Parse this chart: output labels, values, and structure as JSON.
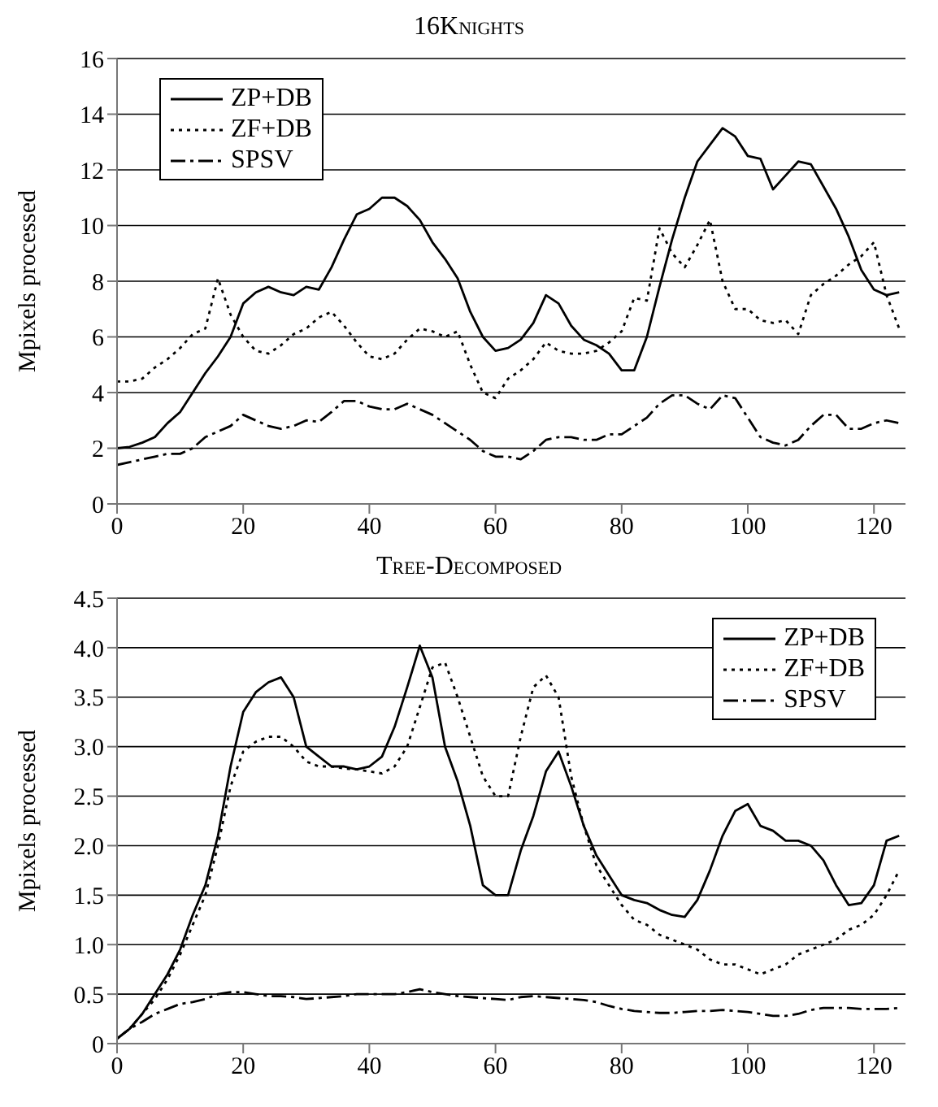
{
  "chart_data": [
    {
      "type": "line",
      "title": "16Knights",
      "ylabel": "Mpixels processed",
      "x": [
        0,
        2,
        4,
        6,
        8,
        10,
        12,
        14,
        16,
        18,
        20,
        22,
        24,
        26,
        28,
        30,
        32,
        34,
        36,
        38,
        40,
        42,
        44,
        46,
        48,
        50,
        52,
        54,
        56,
        58,
        60,
        62,
        64,
        66,
        68,
        70,
        72,
        74,
        76,
        78,
        80,
        82,
        84,
        86,
        88,
        90,
        92,
        94,
        96,
        98,
        100,
        102,
        104,
        106,
        108,
        110,
        112,
        114,
        116,
        118,
        120,
        122,
        124
      ],
      "xlim": [
        0,
        125
      ],
      "xticks": [
        0,
        20,
        40,
        60,
        80,
        100,
        120
      ],
      "ylim": [
        0,
        16
      ],
      "yticks": [
        0,
        2,
        4,
        6,
        8,
        10,
        12,
        14,
        16
      ],
      "grid": "y",
      "legend": "top left",
      "series": [
        {
          "name": "ZP+DB",
          "color": "#000000",
          "line_style": "solid",
          "values": [
            2.0,
            2.05,
            2.2,
            2.4,
            2.9,
            3.3,
            4.0,
            4.7,
            5.3,
            6.0,
            7.2,
            7.6,
            7.8,
            7.6,
            7.5,
            7.8,
            7.7,
            8.5,
            9.5,
            10.4,
            10.6,
            11.0,
            11.0,
            10.7,
            10.2,
            9.4,
            8.8,
            8.1,
            6.9,
            6.0,
            5.5,
            5.6,
            5.9,
            6.5,
            7.5,
            7.2,
            6.4,
            5.9,
            5.7,
            5.4,
            4.8,
            4.8,
            6.0,
            7.8,
            9.5,
            11.0,
            12.3,
            12.9,
            13.5,
            13.2,
            12.5,
            12.4,
            11.3,
            11.8,
            12.3,
            12.2,
            11.4,
            10.6,
            9.6,
            8.4,
            7.7,
            7.5,
            7.6
          ]
        },
        {
          "name": "ZF+DB",
          "color": "#000000",
          "line_style": "dotted",
          "values": [
            4.4,
            4.4,
            4.5,
            4.9,
            5.2,
            5.6,
            6.1,
            6.3,
            8.1,
            6.8,
            6.0,
            5.5,
            5.4,
            5.7,
            6.1,
            6.3,
            6.7,
            6.9,
            6.4,
            5.8,
            5.3,
            5.2,
            5.4,
            5.9,
            6.3,
            6.2,
            6.0,
            6.2,
            5.0,
            4.0,
            3.8,
            4.5,
            4.8,
            5.2,
            5.8,
            5.5,
            5.4,
            5.4,
            5.5,
            5.8,
            6.2,
            7.4,
            7.3,
            9.9,
            9.0,
            8.5,
            9.3,
            10.2,
            8.0,
            7.0,
            7.0,
            6.6,
            6.5,
            6.6,
            6.1,
            7.5,
            7.9,
            8.2,
            8.6,
            8.9,
            9.4,
            7.5,
            6.3
          ]
        },
        {
          "name": "SPSV",
          "color": "#000000",
          "line_style": "dashed",
          "values": [
            1.4,
            1.5,
            1.6,
            1.7,
            1.8,
            1.8,
            2.0,
            2.4,
            2.6,
            2.8,
            3.2,
            3.0,
            2.8,
            2.7,
            2.8,
            3.0,
            2.95,
            3.3,
            3.7,
            3.7,
            3.5,
            3.4,
            3.4,
            3.6,
            3.4,
            3.2,
            2.9,
            2.6,
            2.3,
            1.9,
            1.7,
            1.7,
            1.6,
            1.9,
            2.3,
            2.4,
            2.4,
            2.3,
            2.3,
            2.5,
            2.5,
            2.8,
            3.1,
            3.6,
            3.9,
            3.9,
            3.6,
            3.4,
            3.9,
            3.8,
            3.1,
            2.4,
            2.2,
            2.1,
            2.3,
            2.8,
            3.2,
            3.2,
            2.7,
            2.7,
            2.9,
            3.0,
            2.9
          ]
        }
      ]
    },
    {
      "type": "line",
      "title": "Tree-Decomposed",
      "ylabel": "Mpixels processed",
      "x": [
        0,
        2,
        4,
        6,
        8,
        10,
        12,
        14,
        16,
        18,
        20,
        22,
        24,
        26,
        28,
        30,
        32,
        34,
        36,
        38,
        40,
        42,
        44,
        46,
        48,
        50,
        52,
        54,
        56,
        58,
        60,
        62,
        64,
        66,
        68,
        70,
        72,
        74,
        76,
        78,
        80,
        82,
        84,
        86,
        88,
        90,
        92,
        94,
        96,
        98,
        100,
        102,
        104,
        106,
        108,
        110,
        112,
        114,
        116,
        118,
        120,
        122,
        124
      ],
      "xlim": [
        0,
        125
      ],
      "xticks": [
        0,
        20,
        40,
        60,
        80,
        100,
        120
      ],
      "ylim": [
        0,
        4.5
      ],
      "yticks": [
        0,
        0.5,
        {
          "value": 1,
          "label": "1.0"
        },
        1.5,
        {
          "value": 2,
          "label": "2.0"
        },
        2.5,
        {
          "value": 3,
          "label": "3.0"
        },
        3.5,
        {
          "value": 4,
          "label": "4.0"
        },
        4.5
      ],
      "grid": "y",
      "legend": "top right",
      "series": [
        {
          "name": "ZP+DB",
          "color": "#000000",
          "line_style": "solid",
          "values": [
            0.05,
            0.15,
            0.3,
            0.5,
            0.7,
            0.95,
            1.3,
            1.6,
            2.1,
            2.8,
            3.35,
            3.55,
            3.65,
            3.7,
            3.5,
            3.0,
            2.9,
            2.8,
            2.8,
            2.77,
            2.8,
            2.9,
            3.2,
            3.6,
            4.02,
            3.7,
            3.0,
            2.65,
            2.2,
            1.6,
            1.5,
            1.5,
            1.95,
            2.3,
            2.75,
            2.95,
            2.6,
            2.2,
            1.9,
            1.7,
            1.5,
            1.45,
            1.42,
            1.35,
            1.3,
            1.28,
            1.45,
            1.75,
            2.1,
            2.35,
            2.42,
            2.2,
            2.15,
            2.05,
            2.05,
            2.0,
            1.85,
            1.6,
            1.4,
            1.42,
            1.6,
            2.05,
            2.1
          ]
        },
        {
          "name": "ZF+DB",
          "color": "#000000",
          "line_style": "dotted",
          "values": [
            0.05,
            0.15,
            0.3,
            0.45,
            0.65,
            0.9,
            1.2,
            1.5,
            2.0,
            2.6,
            2.95,
            3.05,
            3.1,
            3.1,
            3.0,
            2.85,
            2.8,
            2.8,
            2.78,
            2.77,
            2.75,
            2.73,
            2.8,
            3.0,
            3.4,
            3.8,
            3.85,
            3.5,
            3.1,
            2.7,
            2.5,
            2.5,
            3.1,
            3.6,
            3.72,
            3.5,
            2.7,
            2.2,
            1.8,
            1.6,
            1.4,
            1.25,
            1.2,
            1.1,
            1.05,
            1.0,
            0.95,
            0.85,
            0.8,
            0.8,
            0.75,
            0.7,
            0.75,
            0.8,
            0.9,
            0.95,
            1.0,
            1.05,
            1.15,
            1.2,
            1.3,
            1.5,
            1.75
          ]
        },
        {
          "name": "SPSV",
          "color": "#000000",
          "line_style": "dashed",
          "values": [
            0.05,
            0.15,
            0.22,
            0.3,
            0.35,
            0.4,
            0.42,
            0.45,
            0.5,
            0.52,
            0.52,
            0.5,
            0.48,
            0.48,
            0.47,
            0.45,
            0.46,
            0.47,
            0.48,
            0.5,
            0.5,
            0.5,
            0.5,
            0.52,
            0.55,
            0.52,
            0.5,
            0.48,
            0.47,
            0.46,
            0.45,
            0.44,
            0.47,
            0.48,
            0.47,
            0.46,
            0.45,
            0.44,
            0.42,
            0.38,
            0.35,
            0.33,
            0.32,
            0.31,
            0.31,
            0.32,
            0.33,
            0.33,
            0.34,
            0.33,
            0.32,
            0.3,
            0.28,
            0.28,
            0.3,
            0.34,
            0.36,
            0.36,
            0.36,
            0.35,
            0.35,
            0.35,
            0.36
          ]
        }
      ]
    }
  ]
}
